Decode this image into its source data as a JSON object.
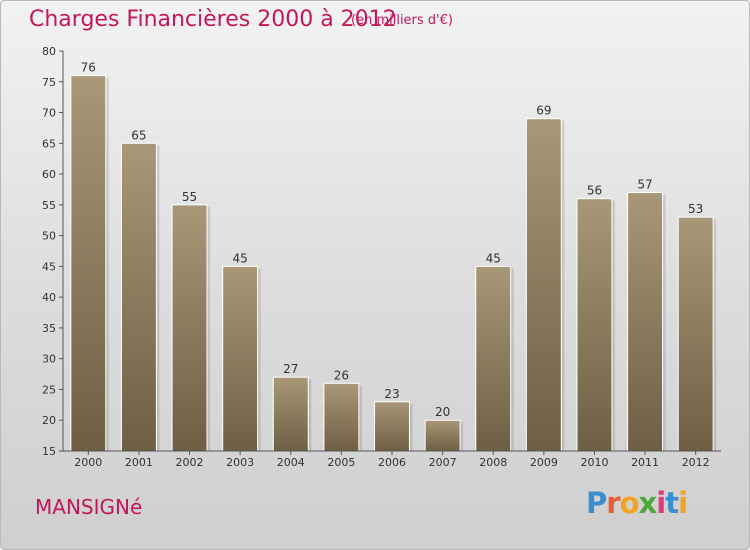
{
  "header": {
    "title": "Charges Financières 2000 à 2012",
    "subtitle": "(en milliers d'€)"
  },
  "footer": {
    "commune": "MANSIGNé",
    "logo_letters": [
      "P",
      "r",
      "o",
      "x",
      "i",
      "t",
      "i"
    ]
  },
  "colors": {
    "title": "#c2185b",
    "bar_top": "#a89878",
    "bar_bottom": "#6e5e44"
  },
  "chart_data": {
    "type": "bar",
    "title": "Charges Financières 2000 à 2012",
    "subtitle": "(en milliers d'€)",
    "categories": [
      "2000",
      "2001",
      "2002",
      "2003",
      "2004",
      "2005",
      "2006",
      "2007",
      "2008",
      "2009",
      "2010",
      "2011",
      "2012"
    ],
    "values": [
      76,
      65,
      55,
      45,
      27,
      26,
      23,
      20,
      45,
      69,
      56,
      57,
      53
    ],
    "ylim": [
      15,
      80
    ],
    "yticks": [
      15,
      20,
      25,
      30,
      35,
      40,
      45,
      50,
      55,
      60,
      65,
      70,
      75,
      80
    ],
    "grid": false
  }
}
